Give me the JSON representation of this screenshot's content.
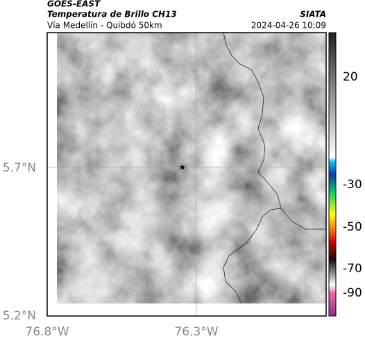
{
  "header": {
    "source": "GOES-EAST",
    "product": "Temperatura de Brillo CH13",
    "route": "Vía Medellín - Quibdó 50km",
    "agency": "SIATA",
    "timestamp": "2024-04-26 10:09"
  },
  "axes": {
    "lat_labels": [
      "5.7°N",
      "5.2°N"
    ],
    "lon_labels": [
      "76.8°W",
      "76.3°W"
    ]
  },
  "colorbar": {
    "ticks": [
      20,
      -30,
      -50,
      -70,
      -90
    ]
  }
}
